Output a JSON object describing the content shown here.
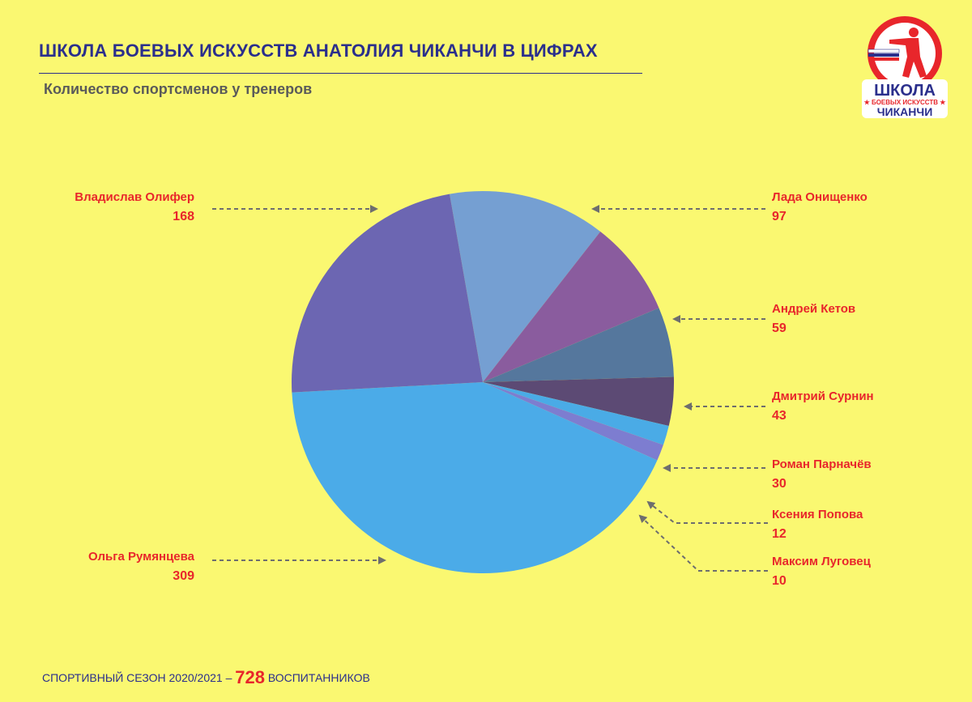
{
  "header": {
    "title": "ШКОЛА БОЕВЫХ ИСКУССТВ АНАТОЛИЯ ЧИКАНЧИ В ЦИФРАХ",
    "subtitle": "Количество спортсменов у тренеров"
  },
  "logo": {
    "line1": "ШКОЛА",
    "line2": "★ БОЕВЫХ ИСКУССТВ ★",
    "line3": "ЧИКАНЧИ"
  },
  "footer": {
    "prefix": "СПОРТИВНЫЙ СЕЗОН 2020/2021 –",
    "total": "728",
    "suffix": "ВОСПИТАННИКОВ"
  },
  "colors": {
    "background": "#FAF871",
    "title": "#2B2F8C",
    "label": "#E8262B"
  },
  "chart_data": {
    "type": "pie",
    "title": "Количество спортсменов у тренеров",
    "slices": [
      {
        "name": "Лада Онищенко",
        "value": 97,
        "color": "#759FD2"
      },
      {
        "name": "Андрей Кетов",
        "value": 59,
        "color": "#8A5C9E"
      },
      {
        "name": "Дмитрий Сурнин",
        "value": 43,
        "color": "#55779D"
      },
      {
        "name": "Роман Парначёв",
        "value": 30,
        "color": "#5C4A74"
      },
      {
        "name": "Ксения Попова",
        "value": 12,
        "color": "#4AABE6"
      },
      {
        "name": "Максим Луговец",
        "value": 10,
        "color": "#7D7DD0"
      },
      {
        "name": "Ольга Румянцева",
        "value": 309,
        "color": "#4BABE8"
      },
      {
        "name": "Владислав Олифер",
        "value": 168,
        "color": "#6C66B2"
      }
    ]
  }
}
